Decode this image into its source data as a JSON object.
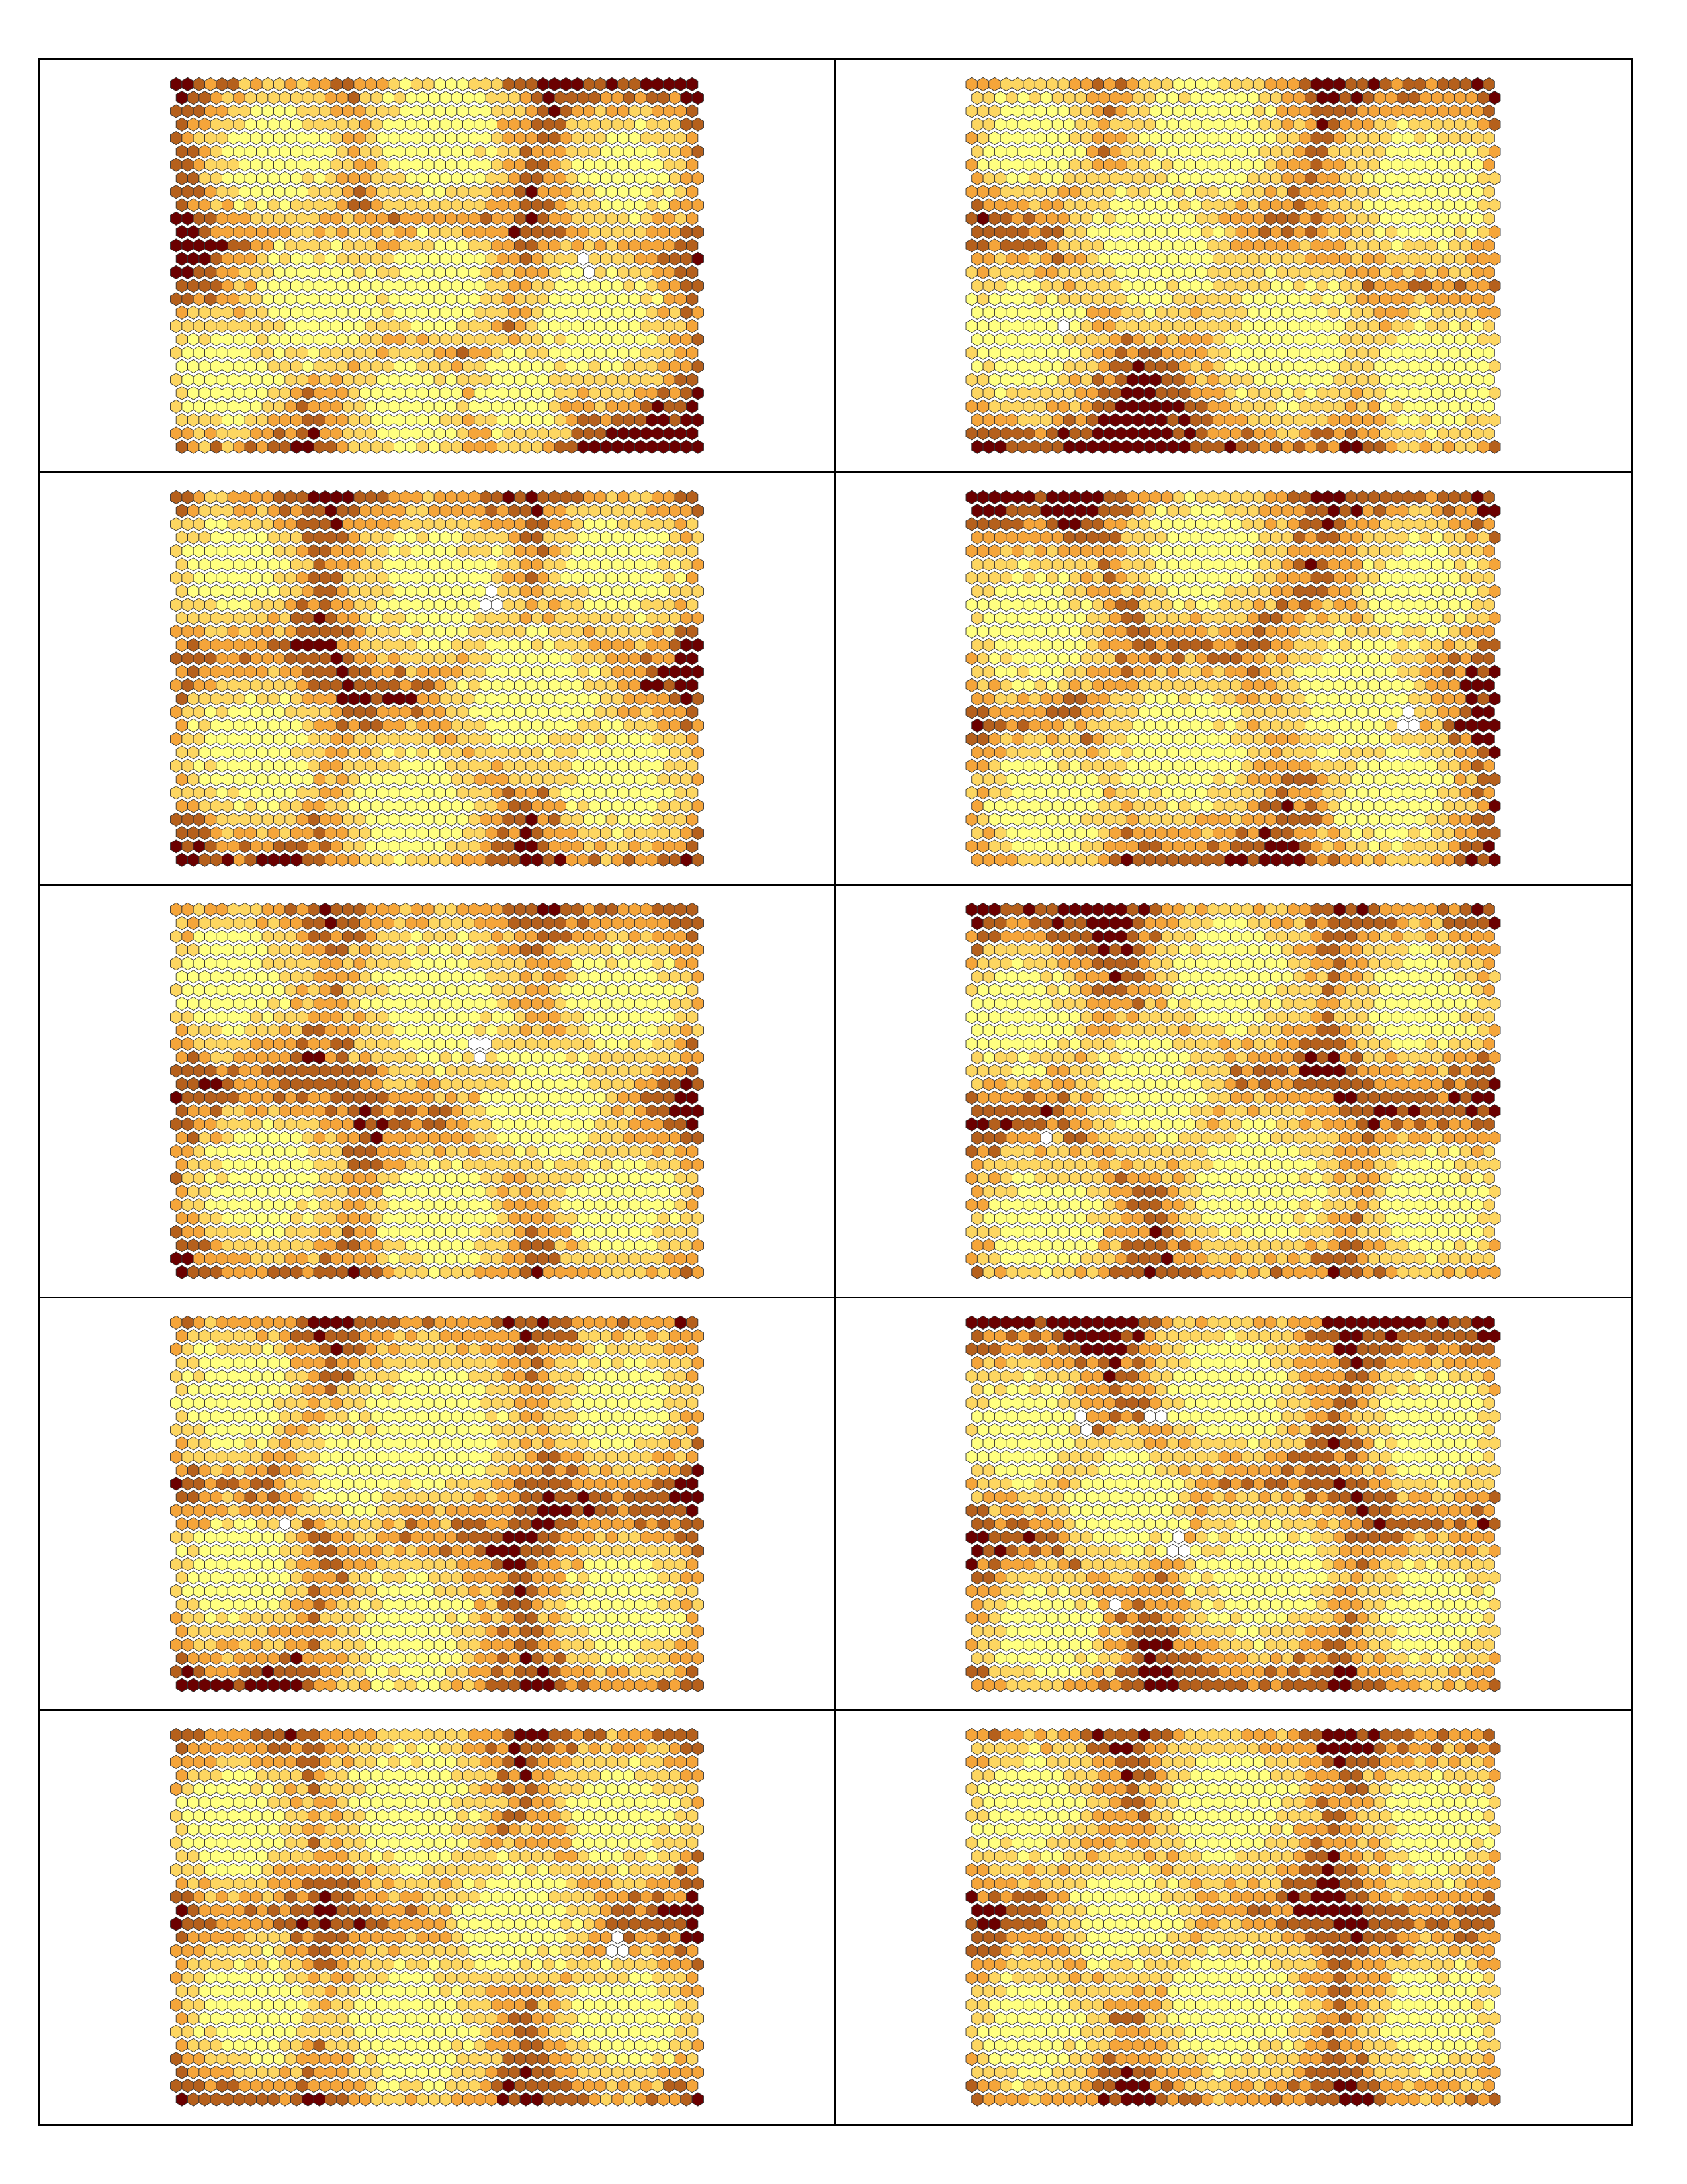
{
  "layout": {
    "rows": 5,
    "columns": 2
  },
  "hex_grid": {
    "columns": 46,
    "rows": 28
  },
  "palette": {
    "level_0": "#ffffff",
    "level_1": "#ffff80",
    "level_2": "#fdd661",
    "level_3": "#f5a53a",
    "level_4": "#b5601c",
    "level_5": "#6b0000",
    "hex_outline": "#333333",
    "table_border": "#000000"
  },
  "panels": [
    {
      "seed": 11,
      "blobs": [
        [
          0.2,
          0.2,
          0.13
        ],
        [
          0.5,
          0.15,
          0.14
        ],
        [
          0.85,
          0.25,
          0.12
        ],
        [
          0.28,
          0.6,
          0.15
        ],
        [
          0.5,
          0.55,
          0.12
        ],
        [
          0.8,
          0.65,
          0.14
        ],
        [
          0.1,
          0.8,
          0.12
        ],
        [
          0.45,
          0.9,
          0.12
        ],
        [
          0.65,
          0.85,
          0.1
        ]
      ],
      "holes": [
        [
          0.78,
          0.5
        ]
      ]
    },
    {
      "seed": 23,
      "blobs": [
        [
          0.12,
          0.15,
          0.12
        ],
        [
          0.45,
          0.15,
          0.15
        ],
        [
          0.85,
          0.3,
          0.15
        ],
        [
          0.1,
          0.7,
          0.14
        ],
        [
          0.35,
          0.45,
          0.15
        ],
        [
          0.6,
          0.7,
          0.16
        ],
        [
          0.88,
          0.8,
          0.14
        ]
      ],
      "holes": [
        [
          0.18,
          0.67
        ]
      ]
    },
    {
      "seed": 37,
      "blobs": [
        [
          0.12,
          0.2,
          0.12
        ],
        [
          0.5,
          0.25,
          0.15
        ],
        [
          0.85,
          0.2,
          0.13
        ],
        [
          0.68,
          0.55,
          0.15
        ],
        [
          0.15,
          0.7,
          0.14
        ],
        [
          0.45,
          0.85,
          0.14
        ],
        [
          0.85,
          0.78,
          0.13
        ]
      ],
      "holes": [
        [
          0.6,
          0.28
        ]
      ]
    },
    {
      "seed": 41,
      "blobs": [
        [
          0.12,
          0.35,
          0.14
        ],
        [
          0.45,
          0.15,
          0.14
        ],
        [
          0.85,
          0.25,
          0.13
        ],
        [
          0.72,
          0.55,
          0.15
        ],
        [
          0.15,
          0.85,
          0.13
        ],
        [
          0.4,
          0.7,
          0.15
        ],
        [
          0.8,
          0.82,
          0.13
        ]
      ],
      "holes": [
        [
          0.83,
          0.62
        ]
      ]
    },
    {
      "seed": 53,
      "blobs": [
        [
          0.12,
          0.2,
          0.13
        ],
        [
          0.5,
          0.25,
          0.16
        ],
        [
          0.85,
          0.25,
          0.13
        ],
        [
          0.7,
          0.55,
          0.15
        ],
        [
          0.18,
          0.75,
          0.14
        ],
        [
          0.5,
          0.85,
          0.13
        ],
        [
          0.85,
          0.82,
          0.13
        ]
      ],
      "holes": [
        [
          0.58,
          0.38
        ]
      ]
    },
    {
      "seed": 67,
      "blobs": [
        [
          0.1,
          0.3,
          0.13
        ],
        [
          0.5,
          0.18,
          0.14
        ],
        [
          0.85,
          0.25,
          0.13
        ],
        [
          0.35,
          0.5,
          0.13
        ],
        [
          0.15,
          0.85,
          0.13
        ],
        [
          0.55,
          0.75,
          0.15
        ],
        [
          0.88,
          0.82,
          0.13
        ]
      ],
      "holes": [
        [
          0.15,
          0.63
        ]
      ]
    },
    {
      "seed": 71,
      "blobs": [
        [
          0.12,
          0.2,
          0.13
        ],
        [
          0.5,
          0.28,
          0.16
        ],
        [
          0.85,
          0.22,
          0.13
        ],
        [
          0.12,
          0.7,
          0.13
        ],
        [
          0.35,
          0.4,
          0.12
        ],
        [
          0.45,
          0.85,
          0.14
        ],
        [
          0.85,
          0.78,
          0.13
        ]
      ],
      "holes": [
        [
          0.22,
          0.55
        ]
      ]
    },
    {
      "seed": 83,
      "blobs": [
        [
          0.1,
          0.3,
          0.13
        ],
        [
          0.5,
          0.18,
          0.14
        ],
        [
          0.88,
          0.3,
          0.13
        ],
        [
          0.3,
          0.5,
          0.13
        ],
        [
          0.15,
          0.85,
          0.12
        ],
        [
          0.55,
          0.7,
          0.15
        ],
        [
          0.88,
          0.8,
          0.13
        ]
      ],
      "holes": [
        [
          0.22,
          0.28
        ],
        [
          0.35,
          0.25
        ],
        [
          0.4,
          0.62
        ],
        [
          0.28,
          0.77
        ]
      ]
    },
    {
      "seed": 97,
      "blobs": [
        [
          0.12,
          0.25,
          0.13
        ],
        [
          0.45,
          0.2,
          0.15
        ],
        [
          0.85,
          0.22,
          0.13
        ],
        [
          0.65,
          0.5,
          0.14
        ],
        [
          0.15,
          0.75,
          0.13
        ],
        [
          0.45,
          0.8,
          0.15
        ],
        [
          0.85,
          0.78,
          0.13
        ]
      ],
      "holes": [
        [
          0.84,
          0.58
        ]
      ]
    },
    {
      "seed": 101,
      "blobs": [
        [
          0.12,
          0.2,
          0.13
        ],
        [
          0.5,
          0.2,
          0.14
        ],
        [
          0.88,
          0.25,
          0.13
        ],
        [
          0.3,
          0.5,
          0.13
        ],
        [
          0.12,
          0.8,
          0.13
        ],
        [
          0.5,
          0.75,
          0.15
        ],
        [
          0.88,
          0.78,
          0.13
        ]
      ],
      "holes": []
    }
  ]
}
